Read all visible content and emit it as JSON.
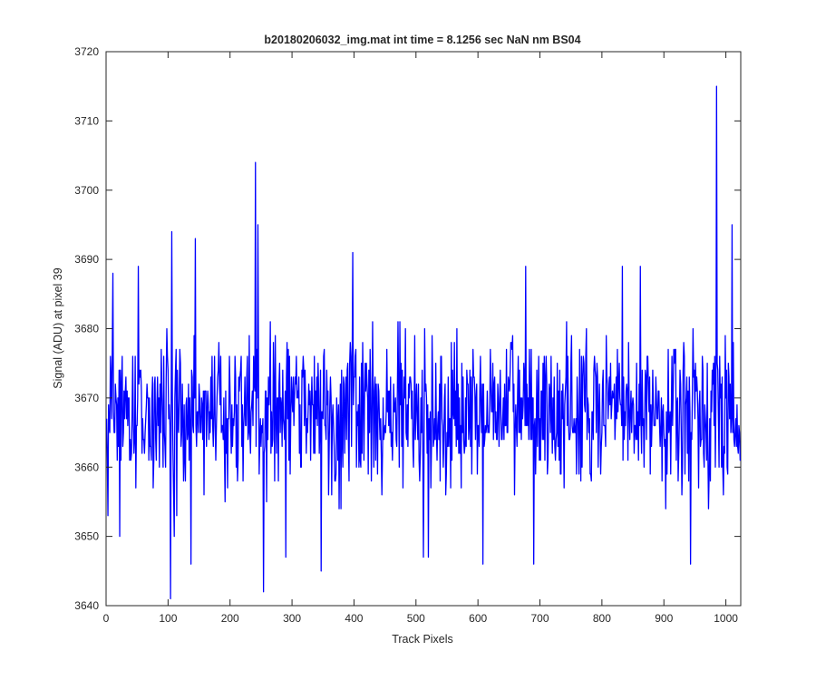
{
  "chart_data": {
    "type": "line",
    "title": "b20180206032_img.mat int time = 8.1256 sec  NaN nm BS04",
    "xlabel": "Track Pixels",
    "ylabel": "Signal (ADU) at pixel 39",
    "xlim": [
      0,
      1024
    ],
    "ylim": [
      3640,
      3720
    ],
    "xticks": [
      0,
      100,
      200,
      300,
      400,
      500,
      600,
      700,
      800,
      900,
      1000
    ],
    "yticks": [
      3640,
      3650,
      3660,
      3670,
      3680,
      3690,
      3700,
      3710,
      3720
    ],
    "grid": false,
    "box": true,
    "line_color": "#0000ff",
    "axis_color": "#262626",
    "background": "#ffffff",
    "series": [
      {
        "x_start": 1,
        "x_step": 1,
        "count": 1024,
        "mean": 3668,
        "noise_amplitude": 13,
        "y_min": 3641,
        "y_max": 3715,
        "notable_points": [
          {
            "x": 1,
            "y": 3667
          },
          {
            "x": 3,
            "y": 3653
          },
          {
            "x": 11,
            "y": 3688
          },
          {
            "x": 22,
            "y": 3650
          },
          {
            "x": 52,
            "y": 3689
          },
          {
            "x": 104,
            "y": 3641
          },
          {
            "x": 106,
            "y": 3694
          },
          {
            "x": 110,
            "y": 3650
          },
          {
            "x": 137,
            "y": 3646
          },
          {
            "x": 144,
            "y": 3693
          },
          {
            "x": 241,
            "y": 3704
          },
          {
            "x": 245,
            "y": 3695
          },
          {
            "x": 254,
            "y": 3642
          },
          {
            "x": 290,
            "y": 3647
          },
          {
            "x": 347,
            "y": 3645
          },
          {
            "x": 398,
            "y": 3691
          },
          {
            "x": 512,
            "y": 3647
          },
          {
            "x": 520,
            "y": 3647
          },
          {
            "x": 608,
            "y": 3646
          },
          {
            "x": 677,
            "y": 3689
          },
          {
            "x": 690,
            "y": 3646
          },
          {
            "x": 833,
            "y": 3689
          },
          {
            "x": 862,
            "y": 3689
          },
          {
            "x": 943,
            "y": 3646
          },
          {
            "x": 985,
            "y": 3715
          },
          {
            "x": 1010,
            "y": 3695
          },
          {
            "x": 1024,
            "y": 3661
          }
        ]
      }
    ]
  }
}
